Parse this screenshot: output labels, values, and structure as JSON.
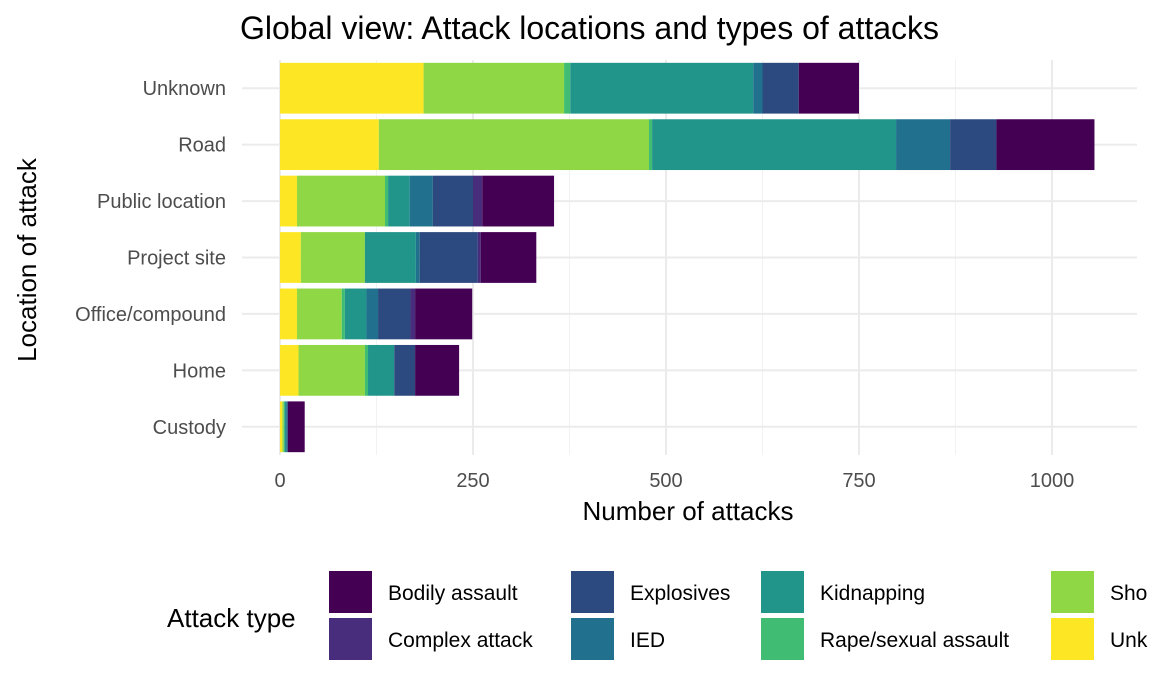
{
  "chart_data": {
    "type": "bar",
    "orientation": "horizontal",
    "stacked": true,
    "title": "Global view: Attack locations and types of attacks",
    "xlabel": "Number of attacks",
    "ylabel": "Location of attack",
    "xlim": [
      0,
      1100
    ],
    "xticks": [
      0,
      250,
      500,
      750,
      1000
    ],
    "xtick_labels": [
      "0",
      "250",
      "500",
      "750",
      "1000"
    ],
    "grid": true,
    "legend_position": "bottom",
    "legend_title": "Attack type",
    "categories": [
      "Unknown",
      "Road",
      "Public location",
      "Project site",
      "Office/compound",
      "Home",
      "Custody"
    ],
    "series": [
      {
        "name": "Bodily assault",
        "color": "#440154",
        "values": [
          78,
          127,
          93,
          72,
          74,
          57,
          22
        ]
      },
      {
        "name": "Complex attack",
        "color": "#472D7B",
        "values": [
          0,
          0,
          12,
          4,
          6,
          0,
          0
        ]
      },
      {
        "name": "Explosives",
        "color": "#2C4A7F",
        "values": [
          47,
          60,
          52,
          75,
          42,
          27,
          0
        ]
      },
      {
        "name": "IED",
        "color": "#21708D",
        "values": [
          12,
          70,
          30,
          5,
          15,
          0,
          2
        ]
      },
      {
        "name": "Kidnapping",
        "color": "#22958B",
        "values": [
          237,
          316,
          28,
          66,
          28,
          34,
          2
        ]
      },
      {
        "name": "Rape/sexual assault",
        "color": "#40BD72",
        "values": [
          8,
          4,
          4,
          0,
          4,
          4,
          1
        ]
      },
      {
        "name": "Shooting",
        "color": "#8FD744",
        "values": [
          182,
          350,
          114,
          83,
          58,
          86,
          2
        ]
      },
      {
        "name": "Unknown",
        "color": "#FDE725",
        "values": [
          186,
          128,
          22,
          27,
          22,
          24,
          3
        ]
      }
    ],
    "legend_entries": [
      {
        "label": "Bodily assault",
        "color": "#440154"
      },
      {
        "label": "Complex attack",
        "color": "#472D7B"
      },
      {
        "label": "Explosives",
        "color": "#2C4A7F"
      },
      {
        "label": "IED",
        "color": "#21708D"
      },
      {
        "label": "Kidnapping",
        "color": "#22958B"
      },
      {
        "label": "Rape/sexual assault",
        "color": "#40BD72"
      },
      {
        "label": "Sho",
        "color": "#8FD744"
      },
      {
        "label": "Unk",
        "color": "#FDE725"
      }
    ]
  }
}
